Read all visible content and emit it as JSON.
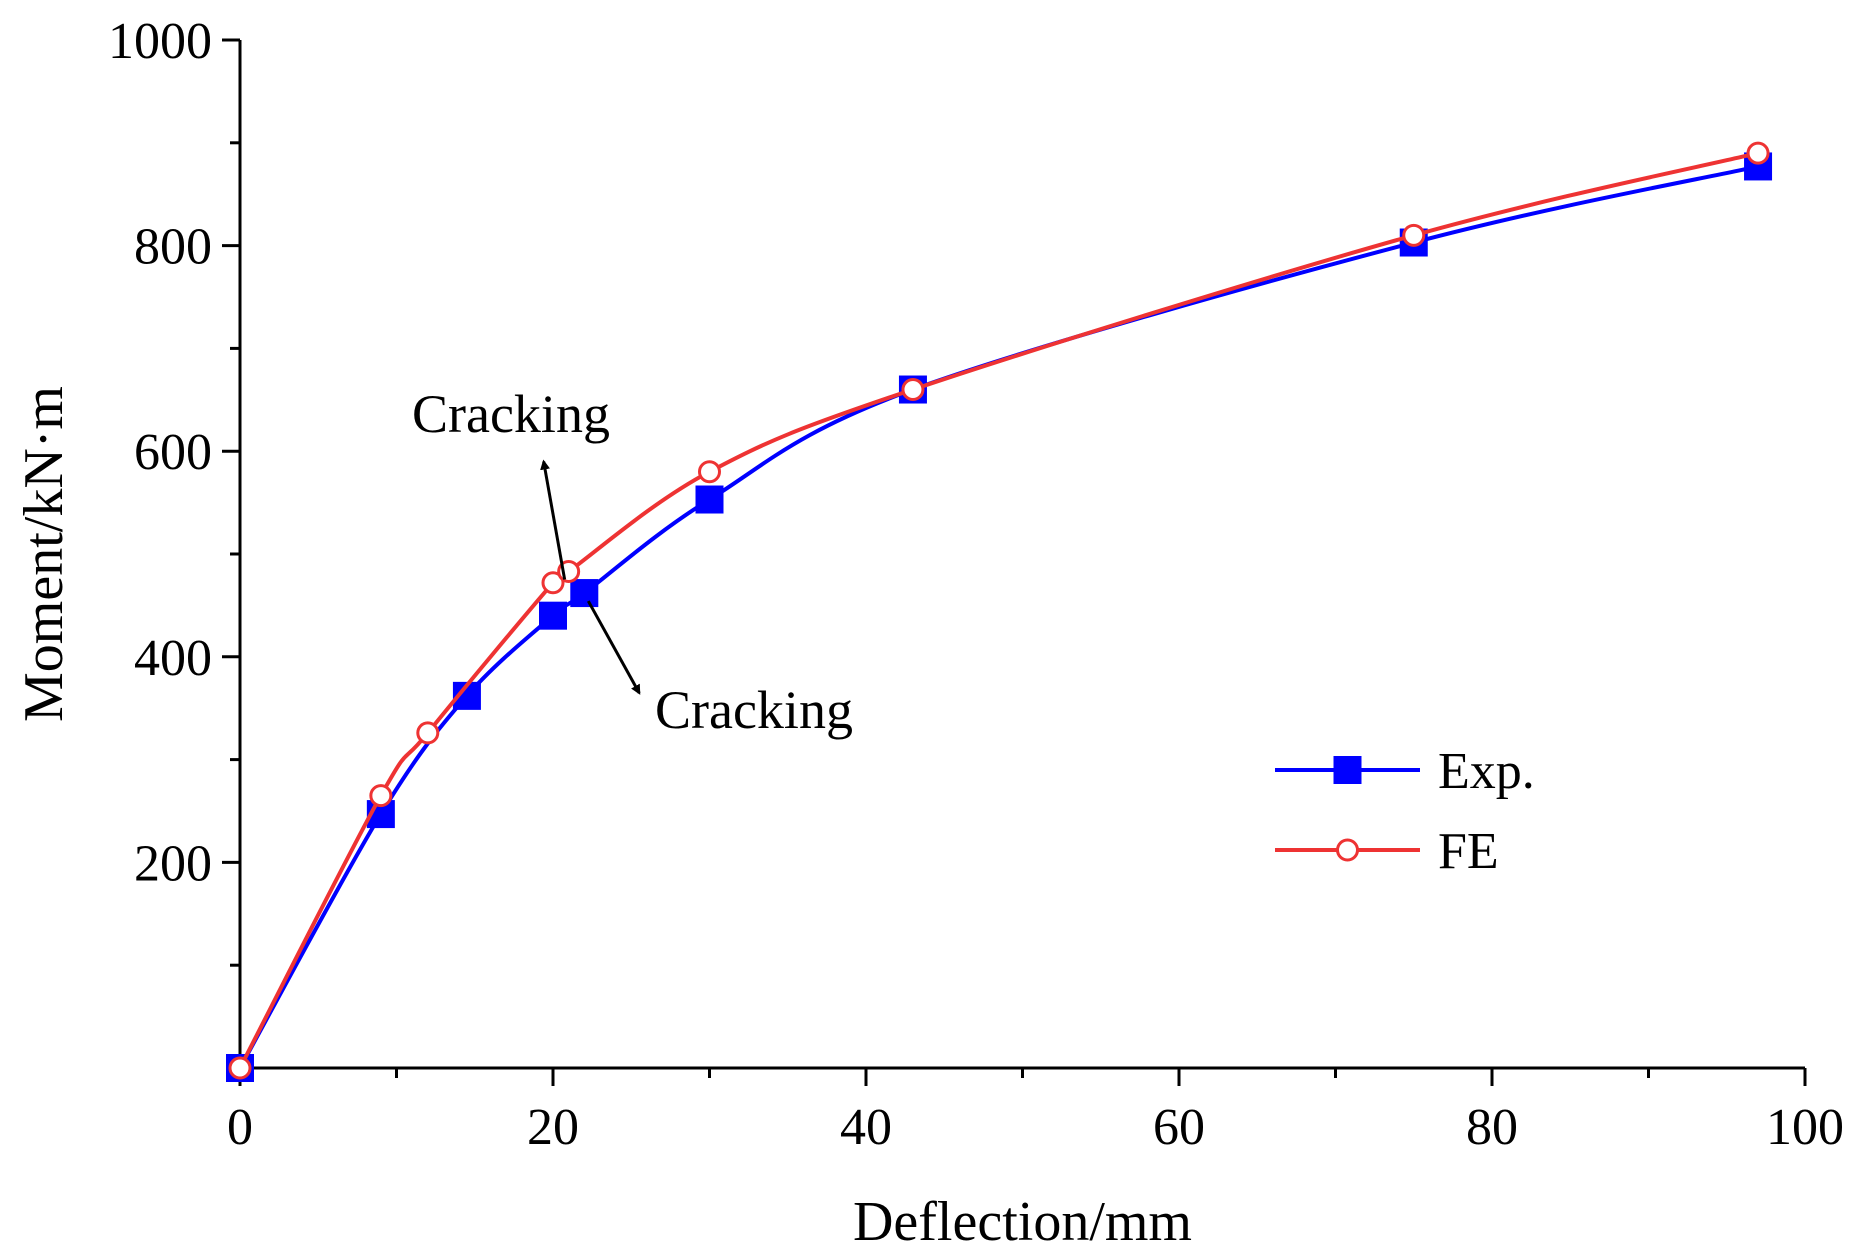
{
  "chart_data": {
    "type": "line",
    "title": "",
    "xlabel": "Deflection/mm",
    "ylabel": "Moment/kN·m",
    "xlim": [
      0,
      100
    ],
    "ylim": [
      0,
      1000
    ],
    "x_ticks": [
      0,
      20,
      40,
      60,
      80,
      100
    ],
    "y_ticks": [
      200,
      400,
      600,
      800,
      1000
    ],
    "x_tick_labels": [
      "0",
      "20",
      "40",
      "60",
      "80",
      "100"
    ],
    "y_tick_labels": [
      "200",
      "400",
      "600",
      "800",
      "1000"
    ],
    "grid": false,
    "legend_position": "bottom-right",
    "series": [
      {
        "name": "Exp.",
        "color": "#0000ff",
        "marker": "filled-square",
        "x": [
          0,
          9,
          14.5,
          20,
          22,
          30,
          43,
          75,
          97
        ],
        "y": [
          0,
          247,
          362,
          440,
          462,
          553,
          660,
          803,
          877
        ]
      },
      {
        "name": "FE",
        "color": "#ee3333",
        "marker": "open-circle",
        "x": [
          0,
          9,
          12,
          20,
          21,
          30,
          43,
          75,
          97
        ],
        "y": [
          0,
          265,
          326,
          472,
          483,
          580,
          660,
          810,
          890
        ]
      }
    ],
    "annotations": [
      {
        "text": "Cracking",
        "target_series": "FE",
        "target": [
          21,
          483
        ],
        "direction": "up-left"
      },
      {
        "text": "Cracking",
        "target_series": "Exp.",
        "target": [
          22,
          462
        ],
        "direction": "down-right"
      }
    ]
  }
}
